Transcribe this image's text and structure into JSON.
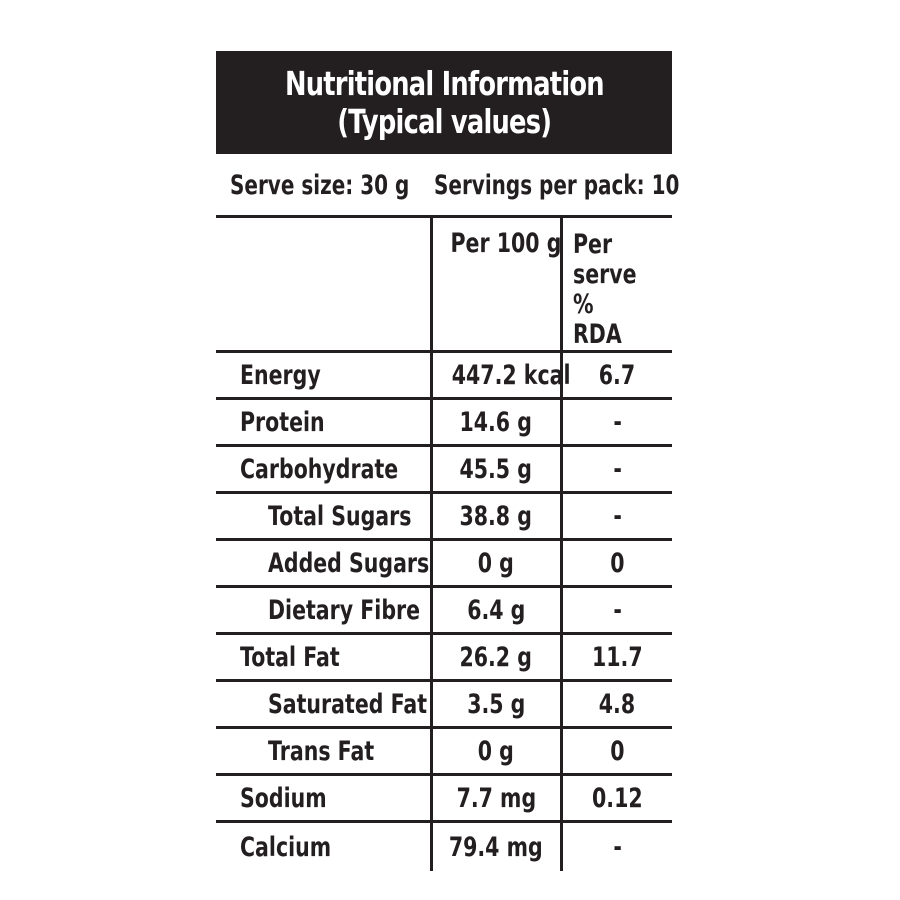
{
  "title": {
    "line1": "Nutritional Information",
    "line2": "(Typical values)"
  },
  "serving": {
    "serve_size": "Serve size: 30 g",
    "servings_per_pack": "Servings per pack: 10"
  },
  "columns": {
    "per100": "Per 100 g",
    "per_serve_line1": "Per",
    "per_serve_line2": "serve %",
    "per_serve_line3": "RDA"
  },
  "rows": [
    {
      "name": "Energy",
      "per100": "447.2 kcal",
      "rda": "6.7",
      "indent": 0
    },
    {
      "name": "Protein",
      "per100": "14.6 g",
      "rda": "-",
      "indent": 0
    },
    {
      "name": "Carbohydrate",
      "per100": "45.5 g",
      "rda": "-",
      "indent": 0
    },
    {
      "name": "Total Sugars",
      "per100": "38.8 g",
      "rda": "-",
      "indent": 1
    },
    {
      "name": "Added Sugars",
      "per100": "0 g",
      "rda": "0",
      "indent": 1
    },
    {
      "name": "Dietary Fibre",
      "per100": "6.4 g",
      "rda": "-",
      "indent": 1
    },
    {
      "name": "Total Fat",
      "per100": "26.2 g",
      "rda": "11.7",
      "indent": 0
    },
    {
      "name": "Saturated Fat",
      "per100": "3.5 g",
      "rda": "4.8",
      "indent": 1
    },
    {
      "name": "Trans Fat",
      "per100": "0 g",
      "rda": "0",
      "indent": 1
    },
    {
      "name": "Sodium",
      "per100": "7.7 mg",
      "rda": "0.12",
      "indent": 0
    },
    {
      "name": "Calcium",
      "per100": "79.4 mg",
      "rda": "-",
      "indent": 0
    }
  ]
}
